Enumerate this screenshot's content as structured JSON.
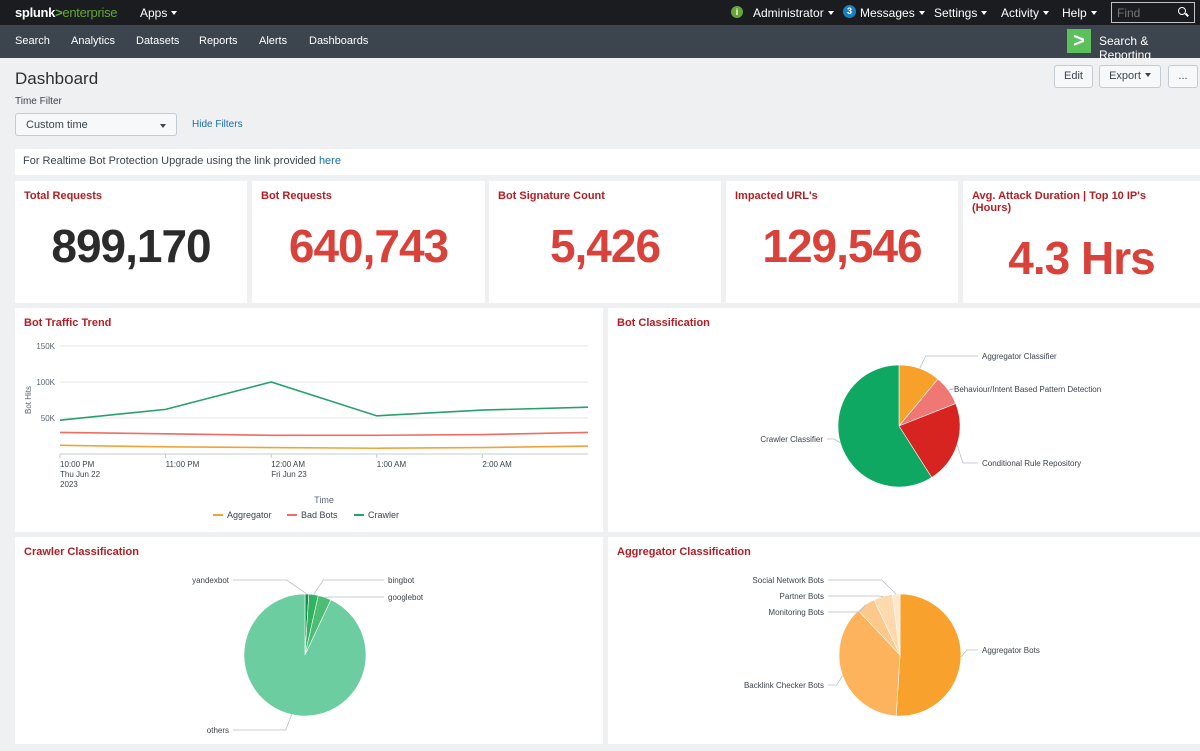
{
  "topbar": {
    "logo_brand": "splunk",
    "logo_sep": ">",
    "logo_product": "enterprise",
    "apps": "Apps",
    "status_icon": "i",
    "user": "Administrator",
    "messages_count": "3",
    "messages": "Messages",
    "settings": "Settings",
    "activity": "Activity",
    "help": "Help",
    "find_placeholder": "Find"
  },
  "appbar": {
    "nav": [
      "Search",
      "Analytics",
      "Datasets",
      "Reports",
      "Alerts",
      "Dashboards"
    ],
    "app_name": "Search & Reporting",
    "app_logo_icon": "chevron-right-icon"
  },
  "header": {
    "title": "Dashboard",
    "edit": "Edit",
    "export": "Export",
    "more": "..."
  },
  "filters": {
    "label": "Time Filter",
    "time_value": "Custom time",
    "hide_filters": "Hide Filters"
  },
  "banner": {
    "text": "For Realtime Bot Protection Upgrade using the link provided ",
    "link": "here"
  },
  "kpis": [
    {
      "title": "Total Requests",
      "value": "899,170",
      "color": "#2b2b2b"
    },
    {
      "title": "Bot Requests",
      "value": "640,743",
      "color": "#d9423a"
    },
    {
      "title": "Bot Signature Count",
      "value": "5,426",
      "color": "#d9423a"
    },
    {
      "title": "Impacted URL's",
      "value": "129,546",
      "color": "#d9423a"
    },
    {
      "title": "Avg. Attack Duration | Top 10 IP's (Hours)",
      "value": "4.3 Hrs",
      "color": "#d9423a"
    }
  ],
  "panels": {
    "traffic_trend": "Bot Traffic Trend",
    "bot_classification": "Bot Classification",
    "crawler_classification": "Crawler Classification",
    "aggregator_classification": "Aggregator Classification"
  },
  "chart_data": [
    {
      "type": "line",
      "title": "Bot Traffic Trend",
      "xlabel": "Time",
      "ylabel": "Bot Hits",
      "yticks": [
        "50K",
        "100K",
        "150K"
      ],
      "ylim": [
        0,
        150000
      ],
      "xticks": [
        {
          "lines": [
            "10:00 PM",
            "Thu Jun 22",
            "2023"
          ]
        },
        {
          "lines": [
            "11:00 PM"
          ]
        },
        {
          "lines": [
            "12:00 AM",
            "Fri Jun 23"
          ]
        },
        {
          "lines": [
            "1:00 AM"
          ]
        },
        {
          "lines": [
            "2:00 AM"
          ]
        }
      ],
      "x": [
        0,
        1,
        2,
        3,
        4,
        5
      ],
      "legend_position": "bottom",
      "series": [
        {
          "name": "Aggregator",
          "color": "#f1a33a",
          "values": [
            12000,
            10000,
            9000,
            8000,
            9000,
            11000
          ]
        },
        {
          "name": "Bad Bots",
          "color": "#ef6b63",
          "values": [
            30000,
            28000,
            26000,
            26000,
            27000,
            30000
          ]
        },
        {
          "name": "Crawler",
          "color": "#27a06c",
          "values": [
            47000,
            62000,
            100000,
            53000,
            61000,
            65000
          ]
        }
      ]
    },
    {
      "type": "pie",
      "title": "Bot Classification",
      "slices": [
        {
          "label": "Aggregator Classifier",
          "value": 11,
          "color": "#f8a12a"
        },
        {
          "label": "Behaviour/Intent Based Pattern Detection",
          "value": 8,
          "color": "#ef7774"
        },
        {
          "label": "Conditional Rule Repository",
          "value": 22,
          "color": "#d72421"
        },
        {
          "label": "Crawler Classifier",
          "value": 59,
          "color": "#0fa862"
        }
      ]
    },
    {
      "type": "pie",
      "title": "Crawler Classification",
      "slices": [
        {
          "label": "yandexbot",
          "value": 1,
          "color": "#188c4b"
        },
        {
          "label": "bingbot",
          "value": 2.5,
          "color": "#2fb361"
        },
        {
          "label": "googlebot",
          "value": 3.5,
          "color": "#4dbd76"
        },
        {
          "label": "others",
          "value": 93,
          "color": "#6ccda0"
        }
      ]
    },
    {
      "type": "pie",
      "title": "Aggregator Classification",
      "slices": [
        {
          "label": "Aggregator Bots",
          "value": 51,
          "color": "#f9a12d"
        },
        {
          "label": "Backlink Checker Bots",
          "value": 37,
          "color": "#fdb35c"
        },
        {
          "label": "Monitoring Bots",
          "value": 5,
          "color": "#fdc98b"
        },
        {
          "label": "Partner Bots",
          "value": 5,
          "color": "#fdd9ad"
        },
        {
          "label": "Social Network Bots",
          "value": 2,
          "color": "#fde8ce"
        }
      ]
    }
  ]
}
